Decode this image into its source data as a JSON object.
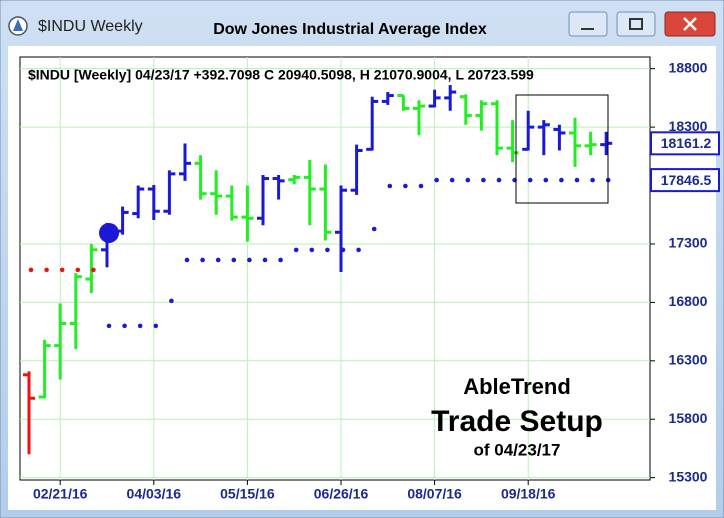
{
  "chart_data": {
    "type": "ohlc",
    "window_title": "$INDU Weekly",
    "title": "Dow Jones Industrial Average Index",
    "subtitle": "$INDU [Weekly] 04/23/17  +392.7098 C 20940.5098, H 21070.9004, L 20723.599",
    "annotations": [
      "AbleTrend",
      "Trade Setup",
      "of 04/23/17"
    ],
    "categories": [
      null,
      null,
      "02/21/16",
      null,
      null,
      null,
      null,
      null,
      "04/03/16",
      null,
      null,
      null,
      null,
      null,
      "05/15/16",
      null,
      null,
      null,
      null,
      null,
      "06/26/16",
      null,
      null,
      null,
      null,
      null,
      "08/07/16",
      null,
      null,
      null,
      null,
      null,
      "09/18/16",
      null,
      null,
      null,
      null,
      null
    ],
    "ohlc": {
      "open": [
        16180,
        15990,
        16430,
        16620,
        17000,
        17250,
        17410,
        17560,
        17770,
        17580,
        17900,
        17990,
        17730,
        17710,
        17530,
        17520,
        17860,
        17850,
        17870,
        17770,
        17400,
        17760,
        18110,
        18520,
        18570,
        18460,
        18480,
        18550,
        18560,
        18400,
        18500,
        18120,
        18110,
        18300,
        18280,
        18250,
        18140,
        18150
      ],
      "high": [
        16210,
        16480,
        16790,
        17050,
        17300,
        17480,
        17620,
        17800,
        17805,
        17930,
        18160,
        18060,
        17930,
        17800,
        17800,
        17890,
        17890,
        17890,
        18020,
        17980,
        17800,
        18150,
        18560,
        18600,
        18573,
        18530,
        18620,
        18660,
        18580,
        18530,
        18530,
        18360,
        18440,
        18360,
        18320,
        18380,
        18260,
        18260
      ],
      "low": [
        15500,
        15980,
        16140,
        16400,
        16880,
        17100,
        17380,
        17520,
        17505,
        17550,
        17840,
        17680,
        17550,
        17500,
        17320,
        17460,
        17680,
        17810,
        17460,
        17330,
        17060,
        17720,
        18100,
        18490,
        18440,
        18230,
        18470,
        18440,
        18320,
        18270,
        18060,
        18000,
        18100,
        18060,
        18100,
        17960,
        18060,
        18060
      ],
      "close": [
        15980,
        16430,
        16620,
        17020,
        17250,
        17410,
        17570,
        17770,
        17580,
        17900,
        17990,
        17730,
        17710,
        17530,
        17520,
        17860,
        17840,
        17870,
        17770,
        17400,
        17760,
        18100,
        18520,
        18570,
        18460,
        18480,
        18550,
        18600,
        18400,
        18500,
        18120,
        18080,
        18300,
        18320,
        18250,
        18140,
        18150,
        18161.2
      ],
      "colors": [
        "#ee1111",
        "#22ee22",
        "#22ee22",
        "#22ee22",
        "#22ee22",
        "#1a1ad6",
        "#1a1ad6",
        "#1a1ad6",
        "#1a1ad6",
        "#1a1ad6",
        "#1a1ad6",
        "#22ee22",
        "#22ee22",
        "#22ee22",
        "#22ee22",
        "#1a1ad6",
        "#1a1ad6",
        "#22ee22",
        "#22ee22",
        "#22ee22",
        "#1a1ad6",
        "#1a1ad6",
        "#1a1ad6",
        "#1a1ad6",
        "#22ee22",
        "#22ee22",
        "#1a1ad6",
        "#1a1ad6",
        "#22ee22",
        "#22ee22",
        "#22ee22",
        "#22ee22",
        "#1a1ad6",
        "#1a1ad6",
        "#1a1ad6",
        "#22ee22",
        "#22ee22",
        "#1a1ad6"
      ]
    },
    "stops": {
      "values": [
        17078,
        17078,
        17078,
        17078,
        17078,
        16599,
        16599,
        16599,
        16599,
        16813,
        17163,
        17163,
        17163,
        17163,
        17163,
        17163,
        17163,
        17249,
        17249,
        17249,
        17249,
        17249,
        17428,
        17796,
        17796,
        17796,
        17846.5,
        17846.5,
        17846.5,
        17846.5,
        17846.5,
        17846.5,
        17846.5,
        17846.5,
        17846.5,
        17846.5,
        17846.5,
        17846.5
      ],
      "colors": [
        "#ee1111",
        "#ee1111",
        "#ee1111",
        "#ee1111",
        "#ee1111",
        "#1a1ad6",
        "#1a1ad6",
        "#1a1ad6",
        "#1a1ad6",
        "#1a1ad6",
        "#1a1ad6",
        "#1a1ad6",
        "#1a1ad6",
        "#1a1ad6",
        "#1a1ad6",
        "#1a1ad6",
        "#1a1ad6",
        "#1a1ad6",
        "#1a1ad6",
        "#1a1ad6",
        "#1a1ad6",
        "#1a1ad6",
        "#1a1ad6",
        "#1a1ad6",
        "#1a1ad6",
        "#1a1ad6",
        "#1a1ad6",
        "#1a1ad6",
        "#1a1ad6",
        "#1a1ad6",
        "#1a1ad6",
        "#1a1ad6",
        "#1a1ad6",
        "#1a1ad6",
        "#1a1ad6",
        "#1a1ad6",
        "#1a1ad6",
        "#1a1ad6"
      ]
    },
    "signal": {
      "values": [
        null,
        null,
        null,
        null,
        null,
        17394,
        null,
        null,
        null,
        null,
        null,
        null,
        null,
        null,
        null,
        null,
        null,
        null,
        null,
        null,
        null,
        null,
        null,
        null,
        null,
        null,
        null,
        null,
        null,
        null,
        null,
        null,
        null,
        null,
        null,
        null,
        null,
        null
      ],
      "color": "#1a1ad6"
    },
    "last_close": 18161.2,
    "stop_level": 17846.5,
    "ylim": [
      15280,
      18900
    ],
    "yticks": [
      15300,
      15800,
      16300,
      16800,
      17300,
      18300,
      18800
    ],
    "grid": true,
    "grid_color": "#b8f0b8"
  }
}
